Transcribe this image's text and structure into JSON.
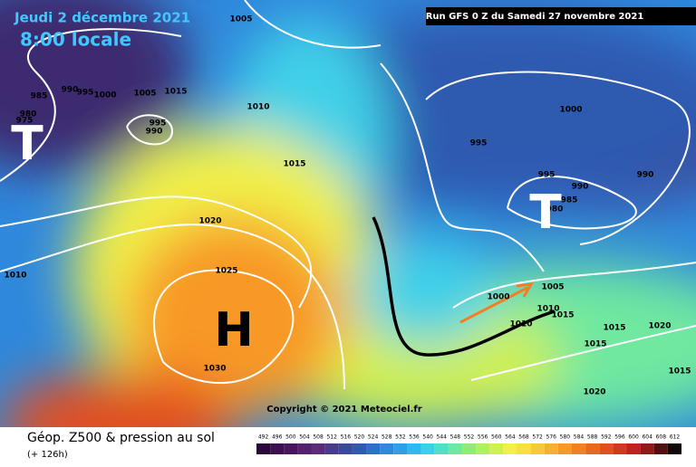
{
  "header": {
    "date": "Jeudi 2 décembre 2021",
    "time": "8:00 locale",
    "run": "Run GFS 0 Z du Samedi 27 novembre 2021"
  },
  "map": {
    "isobar_labels": [
      "1005",
      "985",
      "990",
      "995",
      "1000",
      "980",
      "975",
      "1005",
      "1015",
      "995",
      "990",
      "1010",
      "1015",
      "1020",
      "1025",
      "1030",
      "1010",
      "995",
      "1000",
      "995",
      "990",
      "985",
      "980",
      "990",
      "1005",
      "1000",
      "1010",
      "1015",
      "1010",
      "1015",
      "1020",
      "1015",
      "1015",
      "1020"
    ],
    "centers": [
      "T",
      "T",
      "H"
    ],
    "copyright": "Copyright © 2021 Meteociel.fr"
  },
  "footer": {
    "title": "Géop. Z500 & pression au sol",
    "lead": "(+ 126h)"
  },
  "colorbar": {
    "labels": [
      492,
      496,
      500,
      504,
      508,
      512,
      516,
      520,
      524,
      528,
      532,
      536,
      540,
      544,
      548,
      552,
      556,
      560,
      564,
      568,
      572,
      576,
      580,
      584,
      588,
      592,
      596,
      600,
      604,
      608,
      612
    ],
    "colors": [
      "#2a0a3a",
      "#3c0f4f",
      "#4a1460",
      "#55206e",
      "#5a2c7a",
      "#4a3a8a",
      "#3a4a9a",
      "#2f5ab0",
      "#2f70c8",
      "#2f88dc",
      "#2fa0e8",
      "#30b8f0",
      "#3ad0e8",
      "#50e0c8",
      "#70e8a0",
      "#90ec78",
      "#b0f060",
      "#d0f050",
      "#f0f048",
      "#f8e040",
      "#f8c838",
      "#f8b030",
      "#f89828",
      "#f08020",
      "#e86820",
      "#e05020",
      "#d03820",
      "#c02020",
      "#901818",
      "#501010",
      "#100808"
    ]
  }
}
